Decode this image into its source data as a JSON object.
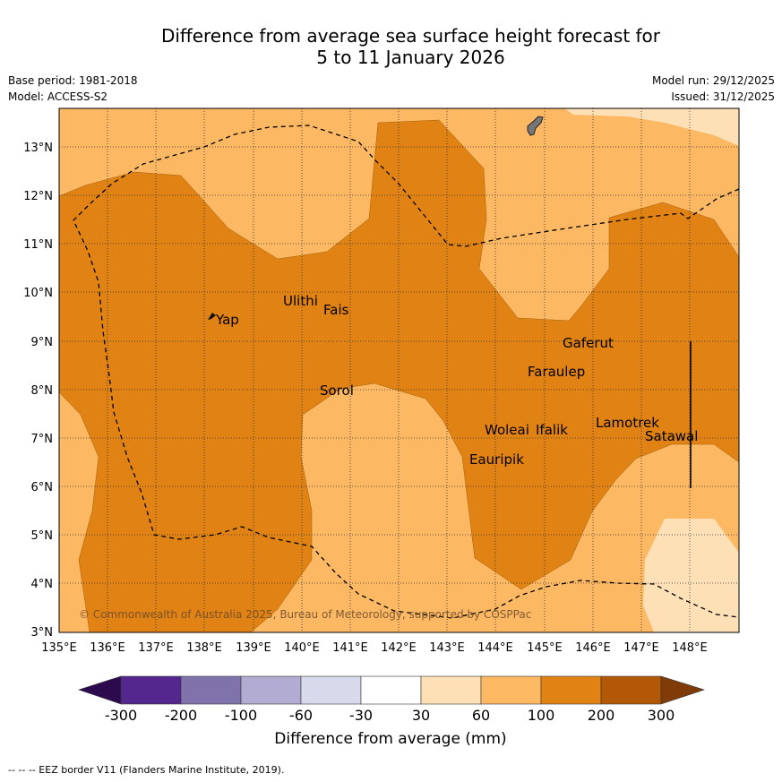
{
  "title": {
    "line1": "Difference from average sea surface height forecast for",
    "line2": "5 to 11 January 2026"
  },
  "meta": {
    "base_period": "Base period: 1981-2018",
    "model": "Model: ACCESS-S2",
    "model_run": "Model run: 29/12/2025",
    "issued": "Issued: 31/12/2025"
  },
  "map": {
    "lon_labels": [
      "135°E",
      "136°E",
      "137°E",
      "138°E",
      "139°E",
      "140°E",
      "141°E",
      "142°E",
      "143°E",
      "144°E",
      "145°E",
      "146°E",
      "147°E",
      "148°E"
    ],
    "lat_labels": [
      "13°N",
      "12°N",
      "11°N",
      "10°N",
      "9°N",
      "8°N",
      "7°N",
      "6°N",
      "5°N",
      "4°N",
      "3°N"
    ],
    "places": [
      "Yap",
      "Ulithi",
      "Fais",
      "Gaferut",
      "Faraulep",
      "Sorol",
      "Lamotrek",
      "Woleai",
      "Ifalik",
      "Satawal",
      "Eauripik"
    ],
    "copyright": "© Commonwealth of Australia 2025, Bureau of Meteorology, supported by COSPPac"
  },
  "colorbar": {
    "ticks": [
      "-300",
      "-200",
      "-100",
      "-60",
      "-30",
      "30",
      "60",
      "100",
      "200",
      "300"
    ],
    "label": "Difference from average (mm)",
    "colors": {
      "extend_low": "#2d0a4e",
      "c1": "#54278f",
      "c2": "#8073ac",
      "c3": "#b2abd2",
      "c4": "#d8daeb",
      "c5": "#ffffff",
      "c6": "#fee0b6",
      "c7": "#fdb863",
      "c8": "#e08214",
      "c9": "#b35806",
      "extend_high": "#7f3b08"
    }
  },
  "footnote": "--  --  -- EEZ border V11 (Flanders Marine Institute, 2019)."
}
